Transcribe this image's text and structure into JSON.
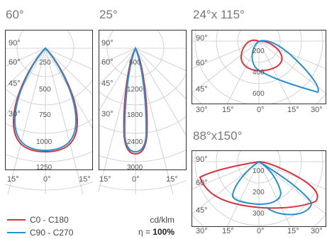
{
  "colors": {
    "c0": "#d63340",
    "c90": "#2a8fcd",
    "grid": "#c8c8c8",
    "frame": "#333333"
  },
  "diagrams": [
    {
      "id": "d60",
      "title": "60°",
      "angle_labels": {
        "top_left": [
          "90°",
          "60°",
          "45°",
          "30°"
        ],
        "bottom": [
          "15°",
          "0°",
          "15°"
        ]
      },
      "ring_labels": [
        "250",
        "500",
        "750",
        "1000",
        "1250"
      ]
    },
    {
      "id": "d25",
      "title": "25°",
      "angle_labels": {
        "top_left": [
          "90°",
          "60°",
          "45°",
          "30°"
        ],
        "bottom": [
          "15°",
          "0°",
          "15°"
        ]
      },
      "ring_labels": [
        "600",
        "1200",
        "1800",
        "2400",
        "3000"
      ]
    },
    {
      "id": "d24",
      "title": "24°x 115°",
      "angle_labels": {
        "top_left": [
          "90°",
          "60°",
          "45°"
        ],
        "bottom": [
          "30°",
          "15°",
          "0°",
          "15°",
          "30°"
        ]
      },
      "ring_labels": [
        "200",
        "400",
        "600"
      ]
    },
    {
      "id": "d88",
      "title": "88°x150°",
      "angle_labels": {
        "top_left": [
          "90°",
          "60°",
          "45°"
        ],
        "bottom": [
          "30°",
          "15°",
          "0°",
          "15°",
          "30°"
        ]
      },
      "ring_labels": [
        "100",
        "200",
        "300"
      ]
    }
  ],
  "legend": {
    "items": [
      {
        "label": "C0 - C180",
        "color": "#d63340"
      },
      {
        "label": "C90 - C270",
        "color": "#2a8fcd"
      }
    ]
  },
  "units": {
    "unit": "cd/klm",
    "eta_label": "η = ",
    "eta_value": "100%"
  }
}
